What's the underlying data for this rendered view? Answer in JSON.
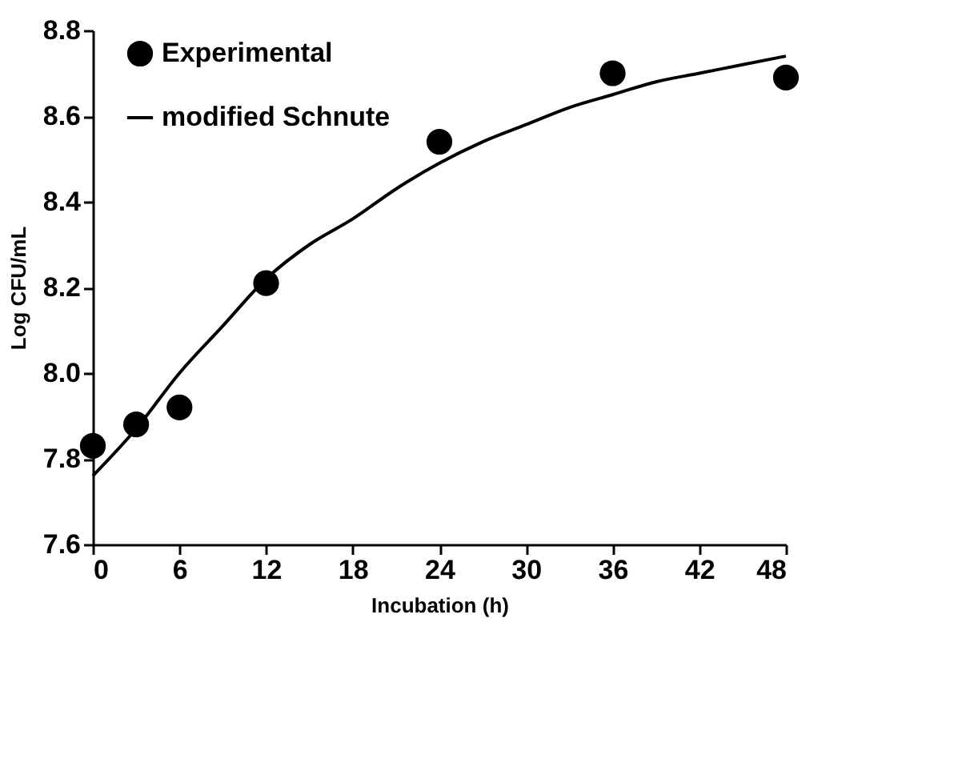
{
  "chart_data": {
    "type": "scatter",
    "xlabel": "Incubation (h)",
    "ylabel": "Log CFU/mL",
    "xlim": [
      0,
      48
    ],
    "xticks": [
      0,
      6,
      12,
      18,
      24,
      30,
      36,
      42,
      48
    ],
    "ylim": [
      7.6,
      8.8
    ],
    "yticks": [
      7.6,
      7.8,
      {
        "value": 8,
        "label": "8.0"
      },
      8.2,
      8.4,
      8.6,
      8.8
    ],
    "grid": false,
    "legend": "top left",
    "series": [
      {
        "name": "Experimental",
        "type": "scatter",
        "marker": "circle",
        "color": "#000000",
        "x": [
          0,
          3,
          6,
          12,
          24,
          36,
          48
        ],
        "values": [
          7.83,
          7.88,
          7.92,
          8.21,
          8.54,
          8.7,
          8.69
        ]
      },
      {
        "name": "modified Schnute",
        "type": "line",
        "marker": "none",
        "line_style": "solid",
        "color": "#000000",
        "x": [
          0,
          3,
          6,
          9,
          12,
          15,
          18,
          21,
          24,
          27,
          30,
          33,
          36,
          39,
          42,
          45,
          48
        ],
        "values": [
          7.76,
          7.87,
          8.0,
          8.11,
          8.22,
          8.3,
          8.36,
          8.43,
          8.49,
          8.54,
          8.58,
          8.62,
          8.65,
          8.68,
          8.7,
          8.72,
          8.74
        ]
      }
    ]
  }
}
